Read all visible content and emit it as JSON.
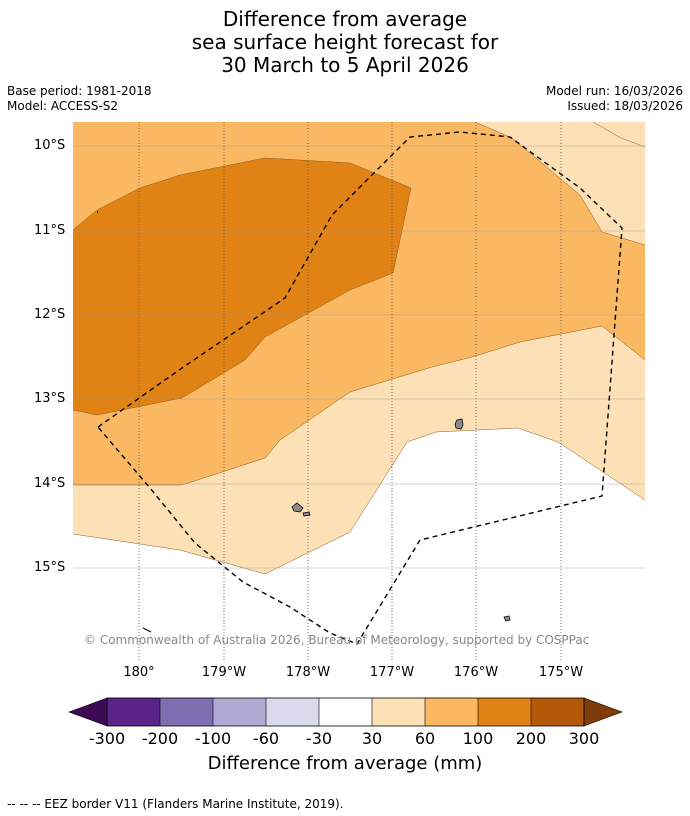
{
  "header": {
    "title_line1": "Difference from average",
    "title_line2": "sea surface height forecast for",
    "title_line3": "30 March to 5 April 2026",
    "base_period": "Base period: 1981-2018",
    "model": "Model: ACCESS-S2",
    "model_run": "Model run: 16/03/2026",
    "issued": "Issued: 18/03/2026"
  },
  "map": {
    "lat_labels": [
      "10°S",
      "11°S",
      "12°S",
      "13°S",
      "14°S",
      "15°S"
    ],
    "lon_labels": [
      "180°",
      "179°W",
      "178°W",
      "177°W",
      "176°W",
      "175°W"
    ],
    "copyright": "© Commonwealth of Australia 2026, Bureau of Meteorology, supported by COSPPac"
  },
  "legend": {
    "ticks": [
      "-300",
      "-200",
      "-100",
      "-60",
      "-30",
      "30",
      "60",
      "100",
      "200",
      "300"
    ],
    "colors": [
      "#3f0a55",
      "#5a2389",
      "#7e6eb0",
      "#b0a9d2",
      "#d8d9ec",
      "#ffffff",
      "#fde0b5",
      "#fbb862",
      "#e08214",
      "#b35806",
      "#7f3b08"
    ],
    "title": "Difference from average (mm)"
  },
  "footnote": "--  --  -- EEZ border V11 (Flanders Marine Institute, 2019)."
}
